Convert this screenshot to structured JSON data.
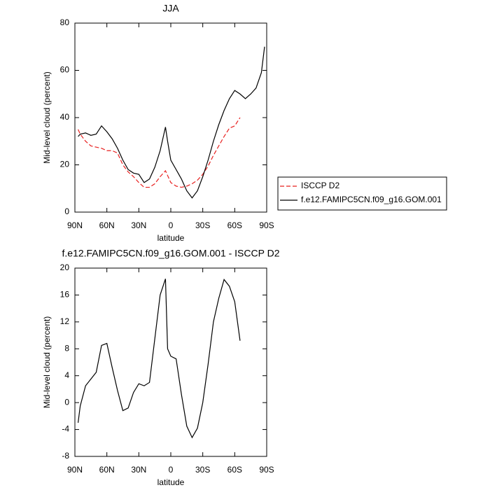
{
  "chart_data": [
    {
      "type": "line",
      "title": "JJA",
      "xlabel": "latitude",
      "ylabel": "Mid-level cloud (percent)",
      "x": [
        87,
        85,
        80,
        75,
        70,
        65,
        60,
        55,
        50,
        45,
        40,
        35,
        30,
        25,
        20,
        15,
        10,
        5,
        3,
        0,
        -5,
        -10,
        -15,
        -20,
        -25,
        -30,
        -35,
        -40,
        -45,
        -50,
        -55,
        -60,
        -65,
        -70,
        -75,
        -80,
        -85,
        -88
      ],
      "series": [
        {
          "name": "ISCCP D2",
          "color": "#e8201f",
          "dash": true,
          "values": [
            35,
            33,
            30,
            28,
            27.5,
            27,
            26,
            26,
            25,
            20,
            17,
            15,
            12.5,
            10.5,
            10.5,
            12,
            15,
            17.5,
            15.5,
            12.5,
            11,
            10.5,
            11,
            12,
            13.5,
            16,
            19.5,
            24,
            28,
            32,
            35.5,
            36.5,
            40,
            null,
            null,
            null,
            null,
            null
          ]
        },
        {
          "name": "f.e12.FAMIPC5CN.f09_g16.GOM.001",
          "color": "#000000",
          "dash": false,
          "values": [
            32,
            33,
            33.5,
            32.5,
            33,
            36.5,
            34,
            31,
            27,
            22,
            18,
            16.5,
            16,
            12.5,
            14,
            19,
            26,
            36,
            30,
            22,
            18,
            14,
            9,
            6,
            9,
            15,
            22,
            30,
            37,
            43,
            48,
            51.5,
            50,
            48,
            50,
            52.5,
            59,
            70
          ]
        }
      ],
      "xlim": [
        90,
        -90
      ],
      "xticks": [
        {
          "value": 90,
          "label": "90N"
        },
        {
          "value": 60,
          "label": "60N"
        },
        {
          "value": 30,
          "label": "30N"
        },
        0,
        {
          "value": -30,
          "label": "30S"
        },
        {
          "value": -60,
          "label": "60S"
        },
        {
          "value": -90,
          "label": "90S"
        }
      ],
      "ylim": [
        0,
        80
      ],
      "yticks": [
        0,
        20,
        40,
        60,
        80
      ],
      "legend": "right"
    },
    {
      "type": "line",
      "title": "f.e12.FAMIPC5CN.f09_g16.GOM.001 - ISCCP D2",
      "xlabel": "latitude",
      "ylabel": "Mid-level cloud (percent)",
      "x": [
        87,
        85,
        80,
        75,
        70,
        65,
        60,
        55,
        50,
        45,
        40,
        35,
        30,
        25,
        20,
        15,
        10,
        5,
        3,
        0,
        -5,
        -10,
        -15,
        -20,
        -25,
        -30,
        -35,
        -40,
        -45,
        -50,
        -55,
        -60,
        -65
      ],
      "series": [
        {
          "color": "#000000",
          "dash": false,
          "values": [
            -3,
            -0.5,
            2.5,
            3.5,
            4.5,
            8.5,
            8.8,
            5.2,
            1.8,
            -1.2,
            -0.8,
            1.5,
            2.8,
            2.5,
            3,
            9.5,
            16,
            18.4,
            8,
            6.9,
            6.5,
            1.2,
            -3.5,
            -5.2,
            -3.8,
            0,
            5.7,
            12,
            15.5,
            18.3,
            17.3,
            15,
            9.2
          ]
        }
      ],
      "xlim": [
        90,
        -90
      ],
      "xticks": [
        {
          "value": 90,
          "label": "90N"
        },
        {
          "value": 60,
          "label": "60N"
        },
        {
          "value": 30,
          "label": "30N"
        },
        0,
        {
          "value": -30,
          "label": "30S"
        },
        {
          "value": -60,
          "label": "60S"
        },
        {
          "value": -90,
          "label": "90S"
        }
      ],
      "ylim": [
        -8,
        20
      ],
      "yticks": [
        -8,
        -4,
        0,
        4,
        8,
        12,
        16,
        20
      ]
    }
  ]
}
